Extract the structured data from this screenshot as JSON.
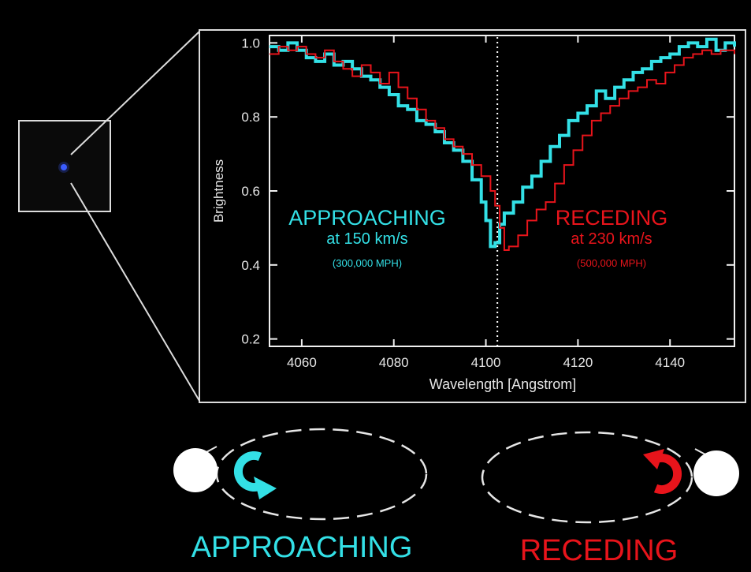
{
  "colors": {
    "approaching": "#33e0e6",
    "receding": "#e8141b",
    "frame": "#e8e8e8",
    "background": "#000000"
  },
  "chart_data": {
    "type": "line",
    "xlabel": "Wavelength [Angstrom]",
    "ylabel": "Brightness",
    "xlim": [
      4053,
      4154
    ],
    "ylim": [
      0.18,
      1.02
    ],
    "xticks": [
      4060,
      4080,
      4100,
      4120,
      4140
    ],
    "xtick_labels": [
      "4060",
      "4080",
      "4100",
      "4120",
      "4140"
    ],
    "yticks": [
      0.2,
      0.4,
      0.6,
      0.8,
      1.0
    ],
    "ytick_labels": [
      "0.2",
      "0.4",
      "0.6",
      "0.8",
      "1.0"
    ],
    "reference_line_x": 4102.5,
    "grid": false,
    "series": [
      {
        "name": "APPROACHING",
        "color": "#33e0e6",
        "x": [
          4053,
          4055,
          4057,
          4059,
          4061,
          4063,
          4065,
          4067,
          4069,
          4071,
          4073,
          4075,
          4077,
          4079,
          4081,
          4083,
          4085,
          4087,
          4089,
          4091,
          4093,
          4095,
          4097,
          4099,
          4100,
          4101,
          4102,
          4103,
          4104,
          4106,
          4108,
          4110,
          4112,
          4114,
          4116,
          4118,
          4120,
          4122,
          4124,
          4126,
          4128,
          4130,
          4132,
          4134,
          4136,
          4138,
          4140,
          4142,
          4144,
          4146,
          4148,
          4150,
          4152,
          4154
        ],
        "y": [
          0.99,
          0.98,
          1.0,
          0.98,
          0.96,
          0.95,
          0.97,
          0.94,
          0.95,
          0.93,
          0.91,
          0.9,
          0.88,
          0.86,
          0.83,
          0.82,
          0.79,
          0.78,
          0.76,
          0.73,
          0.71,
          0.68,
          0.63,
          0.57,
          0.52,
          0.45,
          0.46,
          0.51,
          0.54,
          0.57,
          0.61,
          0.64,
          0.68,
          0.72,
          0.75,
          0.79,
          0.81,
          0.83,
          0.87,
          0.85,
          0.88,
          0.9,
          0.92,
          0.93,
          0.95,
          0.96,
          0.97,
          0.99,
          1.0,
          0.99,
          1.01,
          0.98,
          1.0,
          0.99
        ]
      },
      {
        "name": "RECEDING",
        "color": "#e8141b",
        "x": [
          4053,
          4055,
          4057,
          4059,
          4061,
          4063,
          4065,
          4067,
          4069,
          4071,
          4073,
          4075,
          4077,
          4079,
          4081,
          4083,
          4085,
          4087,
          4089,
          4091,
          4093,
          4095,
          4097,
          4099,
          4101,
          4102,
          4103,
          4104,
          4105,
          4107,
          4109,
          4111,
          4113,
          4115,
          4117,
          4119,
          4121,
          4123,
          4125,
          4127,
          4129,
          4131,
          4133,
          4135,
          4137,
          4139,
          4141,
          4143,
          4145,
          4147,
          4149,
          4151,
          4153,
          4154
        ],
        "y": [
          0.97,
          0.99,
          0.98,
          0.99,
          0.97,
          0.96,
          0.98,
          0.95,
          0.93,
          0.91,
          0.94,
          0.92,
          0.89,
          0.92,
          0.88,
          0.85,
          0.82,
          0.79,
          0.77,
          0.74,
          0.72,
          0.7,
          0.67,
          0.64,
          0.6,
          0.56,
          0.5,
          0.44,
          0.45,
          0.48,
          0.52,
          0.55,
          0.57,
          0.62,
          0.67,
          0.71,
          0.75,
          0.79,
          0.81,
          0.83,
          0.85,
          0.87,
          0.88,
          0.9,
          0.89,
          0.92,
          0.94,
          0.96,
          0.97,
          0.98,
          0.97,
          0.98,
          0.98,
          0.97
        ]
      }
    ]
  },
  "annotations": {
    "approaching": {
      "title": "APPROACHING",
      "speed": "at 150 km/s",
      "mph": "(300,000 MPH)"
    },
    "receding": {
      "title": "RECEDING",
      "speed": "at 230 km/s",
      "mph": "(500,000 MPH)"
    }
  },
  "bottom": {
    "approaching_label": "APPROACHING",
    "receding_label": "RECEDING"
  }
}
